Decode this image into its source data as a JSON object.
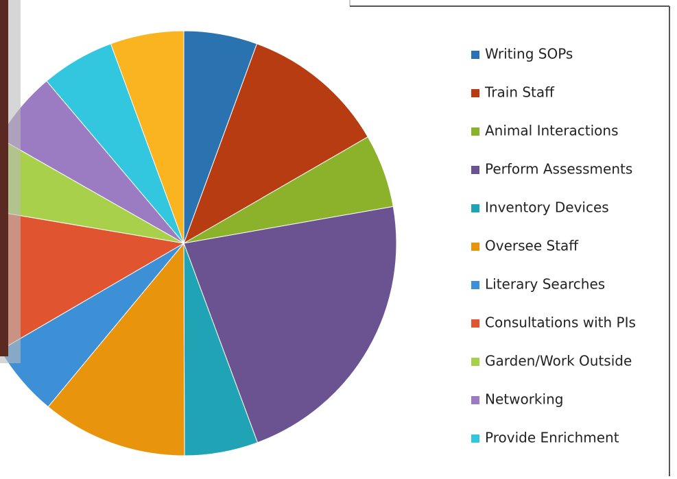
{
  "chart_data": {
    "type": "pie",
    "categories": [
      "Writing SOPs",
      "Train Staff",
      "Animal Interactions",
      "Perform Assessments",
      "Inventory Devices",
      "Oversee Staff",
      "Literary Searches",
      "Consultations with PIs",
      "Garden/Work Outside",
      "Networking",
      "Provide Enrichment",
      null
    ],
    "values": [
      5.6,
      11.1,
      5.6,
      22.2,
      5.6,
      11.1,
      5.6,
      11.1,
      5.6,
      5.6,
      5.6,
      5.6
    ],
    "colors": [
      "#2a72b0",
      "#b83c12",
      "#8cb12a",
      "#6b5291",
      "#1fa3b5",
      "#e8950d",
      "#3d8fd6",
      "#e05530",
      "#a8d04a",
      "#9b7cc3",
      "#33c7df",
      "#f9b420"
    ],
    "legend": "right"
  }
}
